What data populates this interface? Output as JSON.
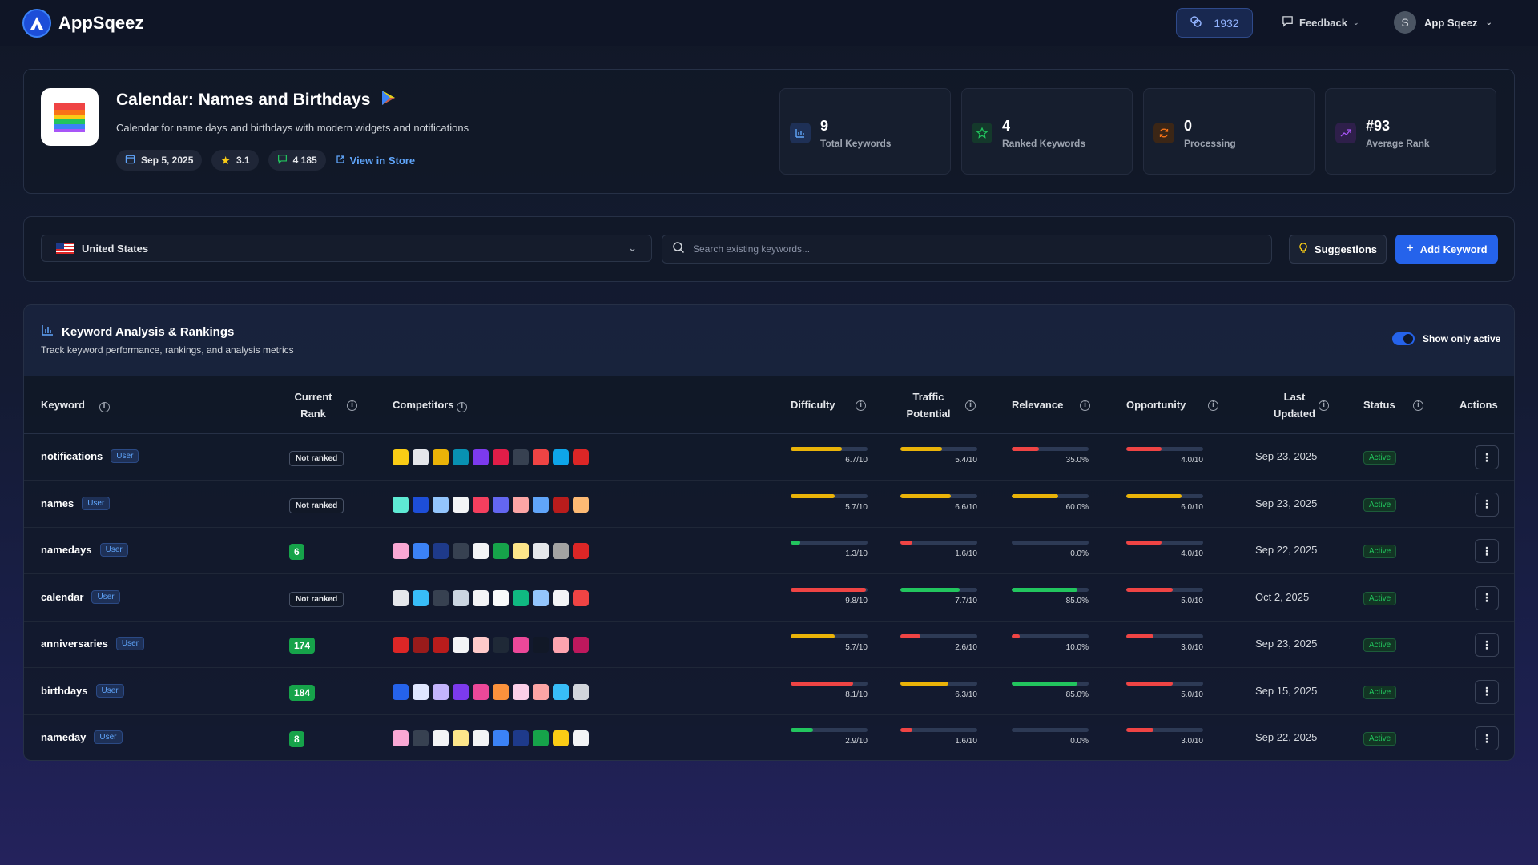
{
  "brand": {
    "name": "AppSqeez"
  },
  "header": {
    "credits": "1932",
    "feedback_label": "Feedback",
    "user_initial": "S",
    "user_name": "App Sqeez"
  },
  "app": {
    "title": "Calendar: Names and Birthdays",
    "description": "Calendar for name days and birthdays with modern widgets and notifications",
    "date": "Sep 5, 2025",
    "rating": "3.1",
    "reviews": "4 185",
    "store_link": "View in Store"
  },
  "stats": [
    {
      "value": "9",
      "label": "Total Keywords",
      "icon": "bar-chart-icon",
      "color": "#60a5fa"
    },
    {
      "value": "4",
      "label": "Ranked Keywords",
      "icon": "star-icon",
      "color": "#22c55e"
    },
    {
      "value": "0",
      "label": "Processing",
      "icon": "refresh-icon",
      "color": "#f97316"
    },
    {
      "value": "#93",
      "label": "Average Rank",
      "icon": "trending-up-icon",
      "color": "#a855f7"
    }
  ],
  "filters": {
    "country": "United States",
    "search_placeholder": "Search existing keywords...",
    "suggestions_label": "Suggestions",
    "add_keyword_label": "Add Keyword"
  },
  "table": {
    "title": "Keyword Analysis & Rankings",
    "subtitle": "Track keyword performance, rankings, and analysis metrics",
    "toggle_label": "Show only active",
    "columns": {
      "keyword": "Keyword",
      "rank_line1": "Current",
      "rank_line2": "Rank",
      "competitors": "Competitors",
      "difficulty": "Difficulty",
      "traffic_line1": "Traffic",
      "traffic_line2": "Potential",
      "relevance": "Relevance",
      "opportunity": "Opportunity",
      "updated_line1": "Last",
      "updated_line2": "Updated",
      "status": "Status",
      "actions": "Actions"
    },
    "rows": [
      {
        "keyword": "notifications",
        "tag": "User",
        "rank": "Not ranked",
        "ranked": false,
        "difficulty": "6.7/10",
        "traffic": "5.4/10",
        "relevance": "35.0%",
        "opportunity": "4.0/10",
        "updated": "Sep 23, 2025",
        "status": "Active"
      },
      {
        "keyword": "names",
        "tag": "User",
        "rank": "Not ranked",
        "ranked": false,
        "difficulty": "5.7/10",
        "traffic": "6.6/10",
        "relevance": "60.0%",
        "opportunity": "6.0/10",
        "updated": "Sep 23, 2025",
        "status": "Active"
      },
      {
        "keyword": "namedays",
        "tag": "User",
        "rank": "6",
        "ranked": true,
        "difficulty": "1.3/10",
        "traffic": "1.6/10",
        "relevance": "0.0%",
        "opportunity": "4.0/10",
        "updated": "Sep 22, 2025",
        "status": "Active"
      },
      {
        "keyword": "calendar",
        "tag": "User",
        "rank": "Not ranked",
        "ranked": false,
        "difficulty": "9.8/10",
        "traffic": "7.7/10",
        "relevance": "85.0%",
        "opportunity": "5.0/10",
        "updated": "Oct 2, 2025",
        "status": "Active"
      },
      {
        "keyword": "anniversaries",
        "tag": "User",
        "rank": "174",
        "ranked": true,
        "difficulty": "5.7/10",
        "traffic": "2.6/10",
        "relevance": "10.0%",
        "opportunity": "3.0/10",
        "updated": "Sep 23, 2025",
        "status": "Active"
      },
      {
        "keyword": "birthdays",
        "tag": "User",
        "rank": "184",
        "ranked": true,
        "difficulty": "8.1/10",
        "traffic": "6.3/10",
        "relevance": "85.0%",
        "opportunity": "5.0/10",
        "updated": "Sep 15, 2025",
        "status": "Active"
      },
      {
        "keyword": "nameday",
        "tag": "User",
        "rank": "8",
        "ranked": true,
        "difficulty": "2.9/10",
        "traffic": "1.6/10",
        "relevance": "0.0%",
        "opportunity": "3.0/10",
        "updated": "Sep 22, 2025",
        "status": "Active"
      }
    ]
  },
  "competitor_colors": [
    [
      "#facc15",
      "#e5e7eb",
      "#eab308",
      "#0891b2",
      "#7c3aed",
      "#e11d48",
      "#374151",
      "#ef4444",
      "#0ea5e9",
      "#dc2626"
    ],
    [
      "#5eead4",
      "#1d4ed8",
      "#93c5fd",
      "#f3f4f6",
      "#f43f5e",
      "#6366f1",
      "#fca5a5",
      "#60a5fa",
      "#b91c1c",
      "#fdba74"
    ],
    [
      "#f9a8d4",
      "#3b82f6",
      "#1e3a8a",
      "#374151",
      "#f3f4f6",
      "#16a34a",
      "#fde68a",
      "#e5e7eb",
      "#a3a3a3",
      "#dc2626"
    ],
    [
      "#e5e7eb",
      "#38bdf8",
      "#374151",
      "#cbd5e1",
      "#f3f4f6",
      "#f9fafb",
      "#10b981",
      "#93c5fd",
      "#f3f4f6",
      "#ef4444"
    ],
    [
      "#dc2626",
      "#991b1b",
      "#b91c1c",
      "#f3f4f6",
      "#fecaca",
      "#1f2937",
      "#ec4899",
      "#111827",
      "#fda4af",
      "#be185d"
    ],
    [
      "#2563eb",
      "#e0e7ff",
      "#c4b5fd",
      "#7c3aed",
      "#ec4899",
      "#fb923c",
      "#fbcfe8",
      "#fca5a5",
      "#38bdf8",
      "#d1d5db"
    ],
    [
      "#f9a8d4",
      "#374151",
      "#f3f4f6",
      "#fde68a",
      "#f3f4f6",
      "#3b82f6",
      "#1e3a8a",
      "#16a34a",
      "#facc15",
      "#f3f4f6"
    ]
  ],
  "metric_colors": {
    "yellow": "#eab308",
    "red": "#ef4444",
    "green": "#22c55e",
    "track": "#2d3a55"
  },
  "metric_levels": [
    {
      "difficulty": 0.67,
      "traffic": 0.54,
      "relevance": 0.35,
      "opportunity": 0.46
    },
    {
      "difficulty": 0.57,
      "traffic": 0.66,
      "relevance": 0.6,
      "opportunity": 0.72
    },
    {
      "difficulty": 0.13,
      "traffic": 0.16,
      "relevance": 0,
      "opportunity": 0.46
    },
    {
      "difficulty": 0.98,
      "traffic": 0.77,
      "relevance": 0.85,
      "opportunity": 0.6
    },
    {
      "difficulty": 0.57,
      "traffic": 0.26,
      "relevance": 0.1,
      "opportunity": 0.35
    },
    {
      "difficulty": 0.81,
      "traffic": 0.63,
      "relevance": 0.85,
      "opportunity": 0.6
    },
    {
      "difficulty": 0.29,
      "traffic": 0.16,
      "relevance": 0,
      "opportunity": 0.35
    }
  ],
  "metric_bar_colors": [
    {
      "difficulty": "yellow",
      "traffic": "yellow",
      "relevance": "red",
      "opportunity": "red"
    },
    {
      "difficulty": "yellow",
      "traffic": "yellow",
      "relevance": "yellow",
      "opportunity": "yellow"
    },
    {
      "difficulty": "green",
      "traffic": "red",
      "relevance": "red",
      "opportunity": "red"
    },
    {
      "difficulty": "red",
      "traffic": "green",
      "relevance": "green",
      "opportunity": "red"
    },
    {
      "difficulty": "yellow",
      "traffic": "red",
      "relevance": "red",
      "opportunity": "red"
    },
    {
      "difficulty": "red",
      "traffic": "yellow",
      "relevance": "green",
      "opportunity": "red"
    },
    {
      "difficulty": "green",
      "traffic": "red",
      "relevance": "red",
      "opportunity": "red"
    }
  ]
}
